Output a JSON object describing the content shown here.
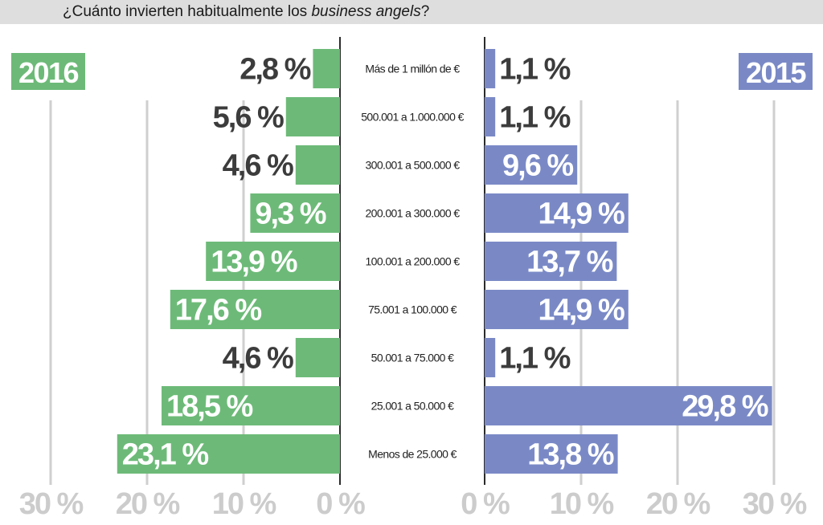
{
  "title": {
    "prefix": "¿Cuánto invierten habitualmente los ",
    "emphasis": "business angels",
    "suffix": "?"
  },
  "colors": {
    "left": "#6dba78",
    "right": "#7a89c6",
    "grid": "#cfcfcf",
    "axis_labels": "#cccccc",
    "dark_label": "#3c3c3c",
    "header_bg": "#dedede"
  },
  "chart_data": {
    "type": "bar",
    "orientation": "horizontal-butterfly",
    "categories": [
      "Más de 1 millón de €",
      "500.001 a 1.000.000 €",
      "300.001 a 500.000 €",
      "200.001 a 300.000 €",
      "100.001 a 200.000 €",
      "75.001 a 100.000 €",
      "50.001 a 75.000 €",
      "25.001 a 50.000 €",
      "Menos de 25.000 €"
    ],
    "series": [
      {
        "name": "2016",
        "side": "left",
        "values": [
          2.8,
          5.6,
          4.6,
          9.3,
          13.9,
          17.6,
          4.6,
          18.5,
          23.1
        ],
        "labels": [
          "2,8 %",
          "5,6 %",
          "4,6 %",
          "9,3 %",
          "13,9 %",
          "17,6 %",
          "4,6 %",
          "18,5 %",
          "23,1 %"
        ]
      },
      {
        "name": "2015",
        "side": "right",
        "values": [
          1.1,
          1.1,
          9.6,
          14.9,
          13.7,
          14.9,
          1.1,
          29.8,
          13.8
        ],
        "labels": [
          "1,1 %",
          "1,1 %",
          "9,6 %",
          "14,9 %",
          "13,7 %",
          "14,9 %",
          "1,1 %",
          "29,8 %",
          "13,8 %"
        ]
      }
    ],
    "ticks": [
      0,
      10,
      20,
      30
    ],
    "tick_labels": [
      "0 %",
      "10 %",
      "20 %",
      "30 %"
    ],
    "xlim": [
      0,
      30
    ],
    "grid": true
  }
}
